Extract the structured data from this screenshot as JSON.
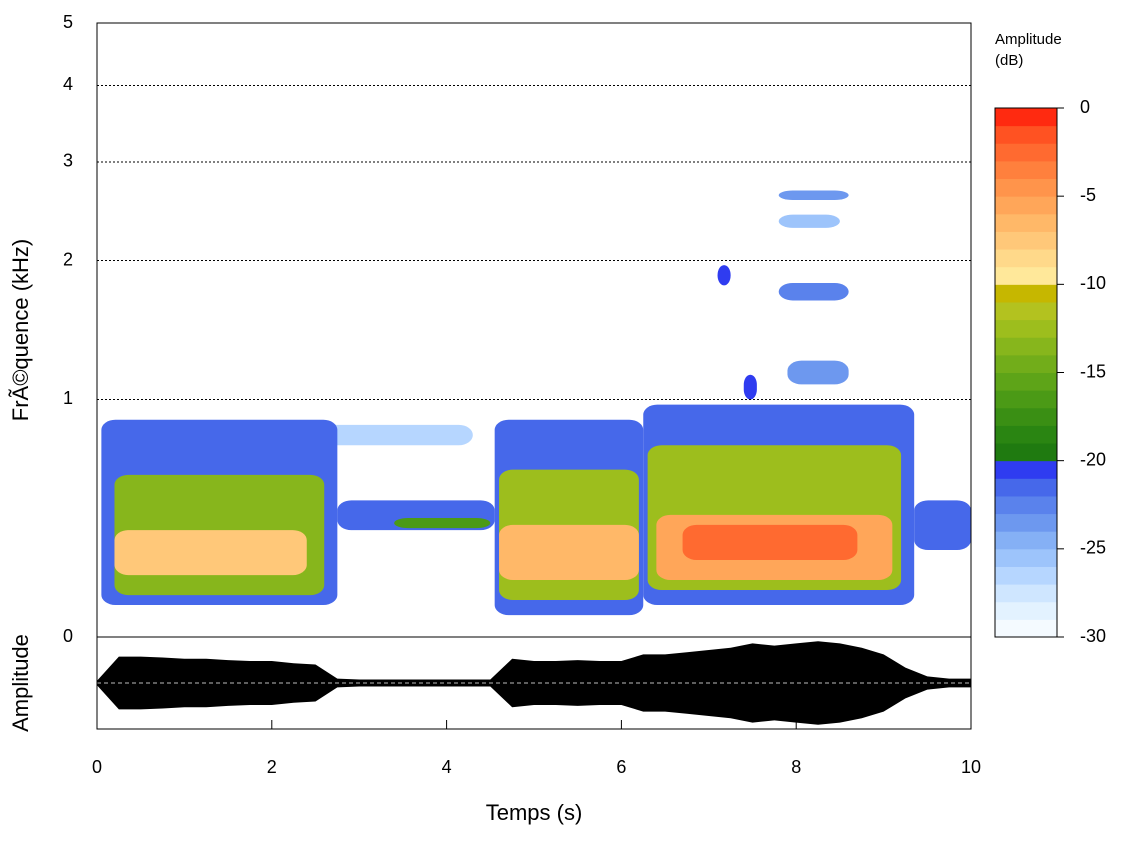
{
  "chart_data": {
    "type": "spectrogram",
    "x_label": "Temps (s)",
    "y_label": "FrÃ©quence (kHz)",
    "osc_label": "Amplitude",
    "xlim": [
      0,
      10
    ],
    "xticks": [
      0,
      2,
      4,
      6,
      8,
      10
    ],
    "ylim": [
      0,
      5
    ],
    "yticks": [
      0,
      1,
      2,
      3,
      4,
      5
    ],
    "yscale": "log1p",
    "grid": true,
    "colorbar_title": [
      "Amplitude",
      "(dB)"
    ],
    "zlim": [
      -30,
      0
    ],
    "zticks": [
      0,
      -5,
      -10,
      -15,
      -20,
      -25,
      -30
    ],
    "palette": [
      "#f4faff",
      "#e3f2ff",
      "#cfe6ff",
      "#b6d6ff",
      "#9dc4fb",
      "#85b0f5",
      "#6d98ef",
      "#5a82ec",
      "#4668ea",
      "#2f3cf0",
      "#1f7a10",
      "#2a8512",
      "#3a8f14",
      "#4b9a16",
      "#5ea418",
      "#72ad1a",
      "#87b61c",
      "#9dbe1d",
      "#b3c21f",
      "#c6b700",
      "#ffe89a",
      "#ffd98a",
      "#ffc879",
      "#ffb868",
      "#ffa659",
      "#ff944b",
      "#ff803d",
      "#ff6a30",
      "#ff5222",
      "#ff2a10"
    ],
    "components": [
      {
        "t": [
          0.2,
          4.3
        ],
        "f": [
          0.75,
          0.857
        ],
        "db": -27
      },
      {
        "t": [
          0.05,
          2.75
        ],
        "f": [
          0.098,
          0.885
        ],
        "db": -22
      },
      {
        "t": [
          0.2,
          2.6
        ],
        "f": [
          0.13,
          0.605
        ],
        "db": -14
      },
      {
        "t": [
          0.2,
          2.4
        ],
        "f": [
          0.198,
          0.366
        ],
        "db": -8
      },
      {
        "t": [
          2.75,
          4.55
        ],
        "f": [
          0.366,
          0.49
        ],
        "db": -22
      },
      {
        "t": [
          3.4,
          4.5
        ],
        "f": [
          0.374,
          0.415
        ],
        "db": -17
      },
      {
        "t": [
          4.55,
          6.25
        ],
        "f": [
          0.066,
          0.885
        ],
        "db": -22
      },
      {
        "t": [
          4.6,
          6.2
        ],
        "f": [
          0.114,
          0.63
        ],
        "db": -13
      },
      {
        "t": [
          4.6,
          6.2
        ],
        "f": [
          0.181,
          0.387
        ],
        "db": -7
      },
      {
        "t": [
          6.25,
          9.35
        ],
        "f": [
          0.098,
          0.97
        ],
        "db": -22
      },
      {
        "t": [
          6.3,
          9.2
        ],
        "f": [
          0.147,
          0.75
        ],
        "db": -13
      },
      {
        "t": [
          6.4,
          9.1
        ],
        "f": [
          0.181,
          0.428
        ],
        "db": -6
      },
      {
        "t": [
          6.7,
          8.7
        ],
        "f": [
          0.252,
          0.387
        ],
        "db": -3
      },
      {
        "t": [
          9.35,
          10
        ],
        "f": [
          0.289,
          0.49
        ],
        "db": -22
      },
      {
        "t": [
          7.1,
          7.25
        ],
        "f": [
          1.79,
          1.96
        ],
        "db": -21
      },
      {
        "t": [
          7.4,
          7.55
        ],
        "f": [
          1.0,
          1.15
        ],
        "db": -21
      },
      {
        "t": [
          7.8,
          8.6
        ],
        "f": [
          1.67,
          1.81
        ],
        "db": -23
      },
      {
        "t": [
          7.8,
          8.6
        ],
        "f": [
          2.58,
          2.68
        ],
        "db": -24
      },
      {
        "t": [
          7.8,
          8.5
        ],
        "f": [
          2.3,
          2.43
        ],
        "db": -26
      },
      {
        "t": [
          7.9,
          8.6
        ],
        "f": [
          1.09,
          1.24
        ],
        "db": -24
      }
    ],
    "oscillogram": {
      "t": [
        0,
        0.25,
        0.5,
        0.75,
        1,
        1.25,
        1.5,
        1.75,
        2,
        2.25,
        2.5,
        2.75,
        3,
        3.25,
        3.5,
        3.75,
        4,
        4.25,
        4.5,
        4.75,
        5,
        5.25,
        5.5,
        5.75,
        6,
        6.25,
        6.5,
        6.75,
        7,
        7.25,
        7.5,
        7.75,
        8,
        8.25,
        8.5,
        8.75,
        9,
        9.25,
        9.5,
        9.75,
        10
      ],
      "envelope": [
        0.05,
        0.6,
        0.6,
        0.58,
        0.55,
        0.55,
        0.52,
        0.5,
        0.5,
        0.45,
        0.42,
        0.1,
        0.08,
        0.08,
        0.08,
        0.08,
        0.08,
        0.08,
        0.08,
        0.55,
        0.5,
        0.5,
        0.52,
        0.5,
        0.5,
        0.65,
        0.65,
        0.7,
        0.75,
        0.8,
        0.9,
        0.85,
        0.9,
        0.95,
        0.9,
        0.8,
        0.65,
        0.35,
        0.15,
        0.1,
        0.1
      ],
      "color": "#000000"
    }
  }
}
